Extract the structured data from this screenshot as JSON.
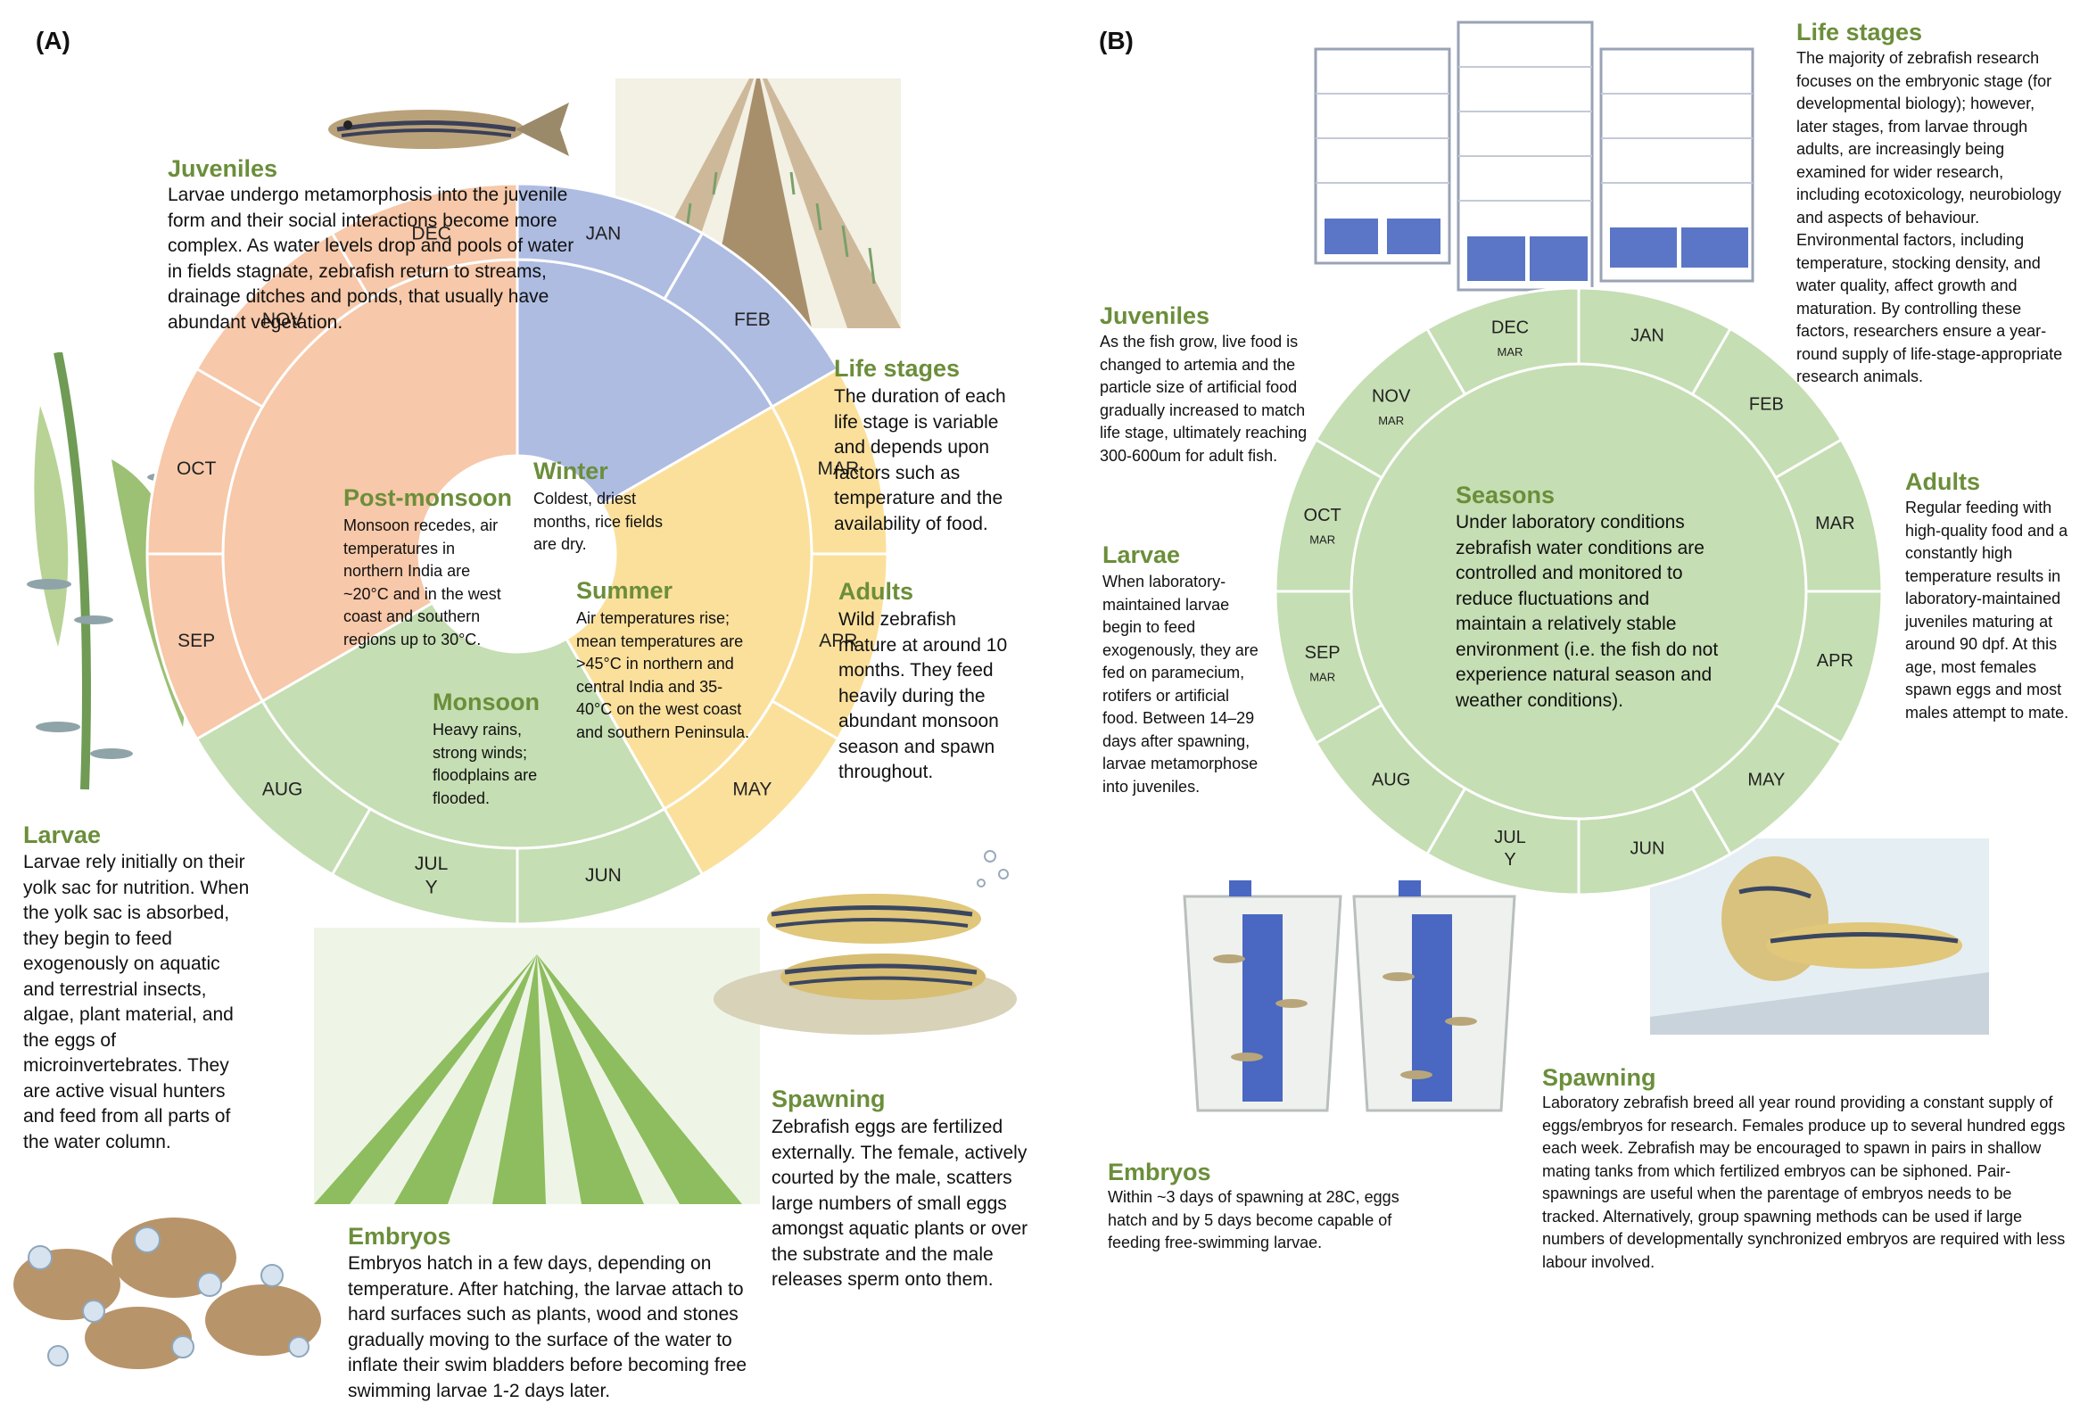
{
  "panels": {
    "a": "(A)",
    "b": "(B)"
  },
  "panel_a": {
    "juveniles": {
      "title": "Juveniles",
      "text": "Larvae undergo metamorphosis into the juvenile form and their social interactions become more complex. As water levels drop and pools of water in fields stagnate, zebrafish return to streams, drainage ditches and ponds, that usually have abundant vegetation."
    },
    "life_stages": {
      "title": "Life stages",
      "text": "The duration of each life stage is variable and depends upon factors such as temperature and the availability of food."
    },
    "adults": {
      "title": "Adults",
      "text": "Wild zebrafish mature at around 10 months. They feed heavily during the abundant monsoon season and spawn throughout."
    },
    "larvae": {
      "title": "Larvae",
      "text": "Larvae rely initially on their yolk sac for nutrition. When the yolk sac is absorbed, they begin to feed exogenously on aquatic and terrestrial insects, algae, plant material, and the eggs of microinvertebrates. They are active visual hunters and feed from all parts of the water column."
    },
    "embryos": {
      "title": "Embryos",
      "text": "Embryos hatch in a few days, depending on temperature. After hatching, the larvae attach to hard surfaces such as plants, wood and stones gradually moving to the surface of the water to inflate their swim bladders before becoming free swimming larvae 1-2 days later."
    },
    "spawning": {
      "title": "Spawning",
      "text": "Zebrafish eggs are fertilized externally. The female, actively courted by the male, scatters large numbers of small eggs amongst aquatic plants or over the substrate and the male releases sperm onto them."
    },
    "months": [
      "JAN",
      "FEB",
      "MAR",
      "APR",
      "MAY",
      "JUN",
      "JUL\nY",
      "AUG",
      "SEP",
      "OCT",
      "NOV",
      "DEC"
    ],
    "seasons": {
      "winter": {
        "title": "Winter",
        "text": "Coldest, driest months, rice fields are dry."
      },
      "summer": {
        "title": "Summer",
        "text": "Air temperatures rise; mean temperatures are >45°C in northern and central India and 35-40°C on the west coast and southern Peninsula."
      },
      "monsoon": {
        "title": "Monsoon",
        "text": "Heavy rains, strong winds; floodplains are flooded."
      },
      "post_monsoon": {
        "title": "Post-monsoon",
        "text": "Monsoon recedes, air temperatures in northern India are ~20°C and in the west coast and southern regions up to 30°C."
      }
    },
    "colors": {
      "winter": "#aebce2",
      "summer": "#fbe09c",
      "monsoon": "#c5deb3",
      "post_monsoon": "#f7c8a9"
    }
  },
  "panel_b": {
    "life_stages": {
      "title": "Life stages",
      "text": "The majority of zebrafish research focuses on the embryonic stage (for developmental biology); however, later stages, from larvae through adults, are increasingly being examined for wider research, including ecotoxicology, neurobiology and aspects of behaviour. Environmental factors, including temperature, stocking density, and water quality, affect growth and maturation. By controlling these factors, researchers ensure a year-round supply of life-stage-appropriate research animals."
    },
    "juveniles": {
      "title": "Juveniles",
      "text": "As the fish grow, live food is changed to artemia and the particle size of artificial food gradually increased to match life stage, ultimately reaching 300-600um for adult fish."
    },
    "larvae": {
      "title": "Larvae",
      "text": "When laboratory-maintained larvae begin to feed exogenously, they are fed on paramecium, rotifers or artificial food. Between 14–29 days after spawning, larvae metamorphose into juveniles."
    },
    "adults": {
      "title": "Adults",
      "text": "Regular feeding with high-quality food and a constantly high temperature results in laboratory-maintained juveniles maturing at around 90 dpf. At this age, most females spawn eggs and most males attempt to mate."
    },
    "embryos": {
      "title": "Embryos",
      "text": "Within ~3 days of spawning at 28C, eggs hatch and by 5 days become capable of feeding free-swimming larvae."
    },
    "spawning": {
      "title": "Spawning",
      "text": "Laboratory zebrafish breed all year round providing a constant supply of eggs/embryos for research. Females produce up to several hundred eggs each week. Zebrafish may be encouraged to spawn in pairs in shallow mating tanks from which fertilized embryos can be siphoned. Pair-spawnings are useful when the parentage of embryos needs to be tracked. Alternatively, group spawning methods can be used if large numbers of developmentally synchronized embryos are required with less labour involved."
    },
    "seasons": {
      "title": "Seasons",
      "text": "Under laboratory conditions zebrafish water conditions are controlled and monitored to reduce fluctuations and maintain a relatively stable environment (i.e. the fish do not experience natural season and weather conditions)."
    },
    "months": [
      "JAN",
      "FEB",
      "MAR",
      "APR",
      "MAY",
      "JUN",
      "JUL\nY",
      "AUG",
      "SEP",
      "OCT",
      "NOV",
      "DEC"
    ],
    "month_sublabels": [
      "",
      "",
      "",
      "",
      "",
      "",
      "",
      "",
      "MAR",
      "MAR",
      "MAR",
      "MAR"
    ],
    "color": "#c5deb3"
  }
}
